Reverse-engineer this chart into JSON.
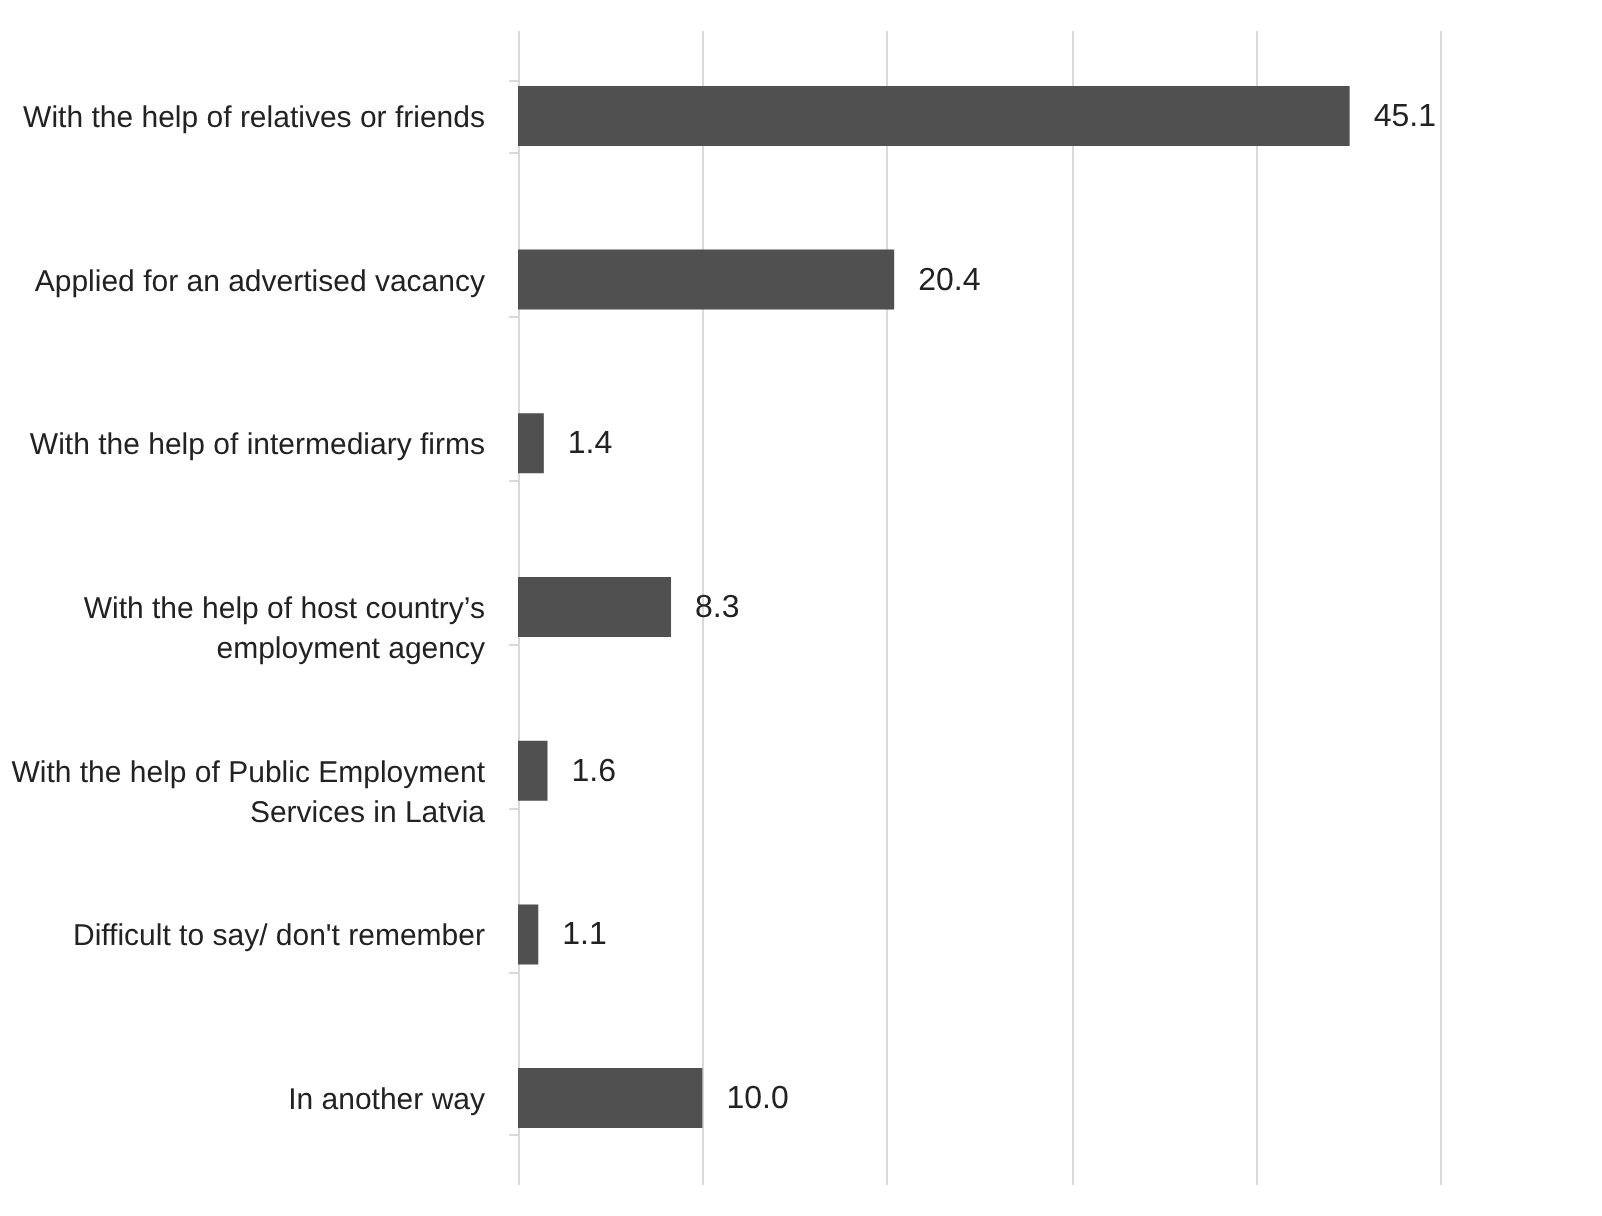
{
  "chart_data": {
    "type": "bar",
    "orientation": "horizontal",
    "categories": [
      "With the help of relatives or friends",
      "Applied for an advertised vacancy",
      "With the help of intermediary firms",
      "With the help of host country’s employment agency",
      "With the help of Public Employment Services in Latvia",
      "Difficult to say/ don't remember",
      "In another way"
    ],
    "values": [
      45.1,
      20.4,
      1.4,
      8.3,
      1.6,
      1.1,
      10.0
    ],
    "value_labels": [
      "45.1",
      "20.4",
      "1.4",
      "8.3",
      "1.6",
      "1.1",
      "10.0"
    ],
    "color": "#505050",
    "xlim": [
      0,
      50
    ],
    "xticks": [
      {
        "value": 0,
        "label": null
      },
      {
        "value": 10,
        "label": null
      },
      {
        "value": 20,
        "label": null
      },
      {
        "value": 30,
        "label": null
      },
      {
        "value": 40,
        "label": null
      },
      {
        "value": 50,
        "label": null
      }
    ],
    "grid": "x",
    "tick_labels": "y"
  }
}
